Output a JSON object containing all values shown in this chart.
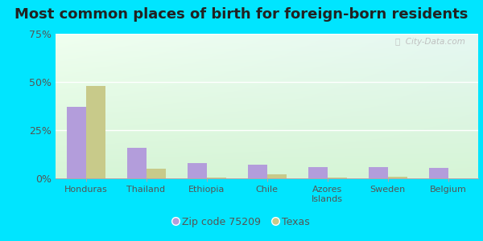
{
  "title": "Most common places of birth for foreign-born residents",
  "categories": [
    "Honduras",
    "Thailand",
    "Ethiopia",
    "Chile",
    "Azores\nIslands",
    "Sweden",
    "Belgium"
  ],
  "zip_values": [
    37,
    16,
    8,
    7,
    6,
    6,
    5.5
  ],
  "texas_values": [
    48,
    5,
    0.5,
    2,
    0.3,
    1,
    0.2
  ],
  "zip_color": "#b39ddb",
  "texas_color": "#c8ca8a",
  "ylim": [
    0,
    75
  ],
  "yticks": [
    0,
    25,
    50,
    75
  ],
  "ytick_labels": [
    "0%",
    "25%",
    "50%",
    "75%"
  ],
  "outer_background": "#00e5ff",
  "legend_zip_label": "Zip code 75209",
  "legend_texas_label": "Texas",
  "watermark": "ⓘ  City-Data.com",
  "title_fontsize": 13
}
